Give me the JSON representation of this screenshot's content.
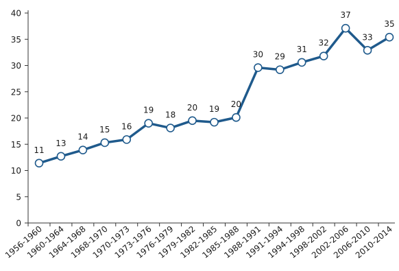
{
  "chart_data": {
    "type": "line",
    "title": "",
    "xlabel": "",
    "ylabel": "",
    "ylim": [
      0,
      40
    ],
    "yticks": [
      0,
      5,
      10,
      15,
      20,
      25,
      30,
      35,
      40
    ],
    "grid": false,
    "legend": "none",
    "line_color": "#1f5a8c",
    "marker_fill": "#ffffff",
    "categories": [
      "1956-1960",
      "1960-1964",
      "1964-1968",
      "1968-1970",
      "1970-1973",
      "1973-1976",
      "1976-1979",
      "1979-1982",
      "1982-1985",
      "1985-1988",
      "1988-1991",
      "1991-1994",
      "1994-1998",
      "1998-2002",
      "2002-2006",
      "2006-2010",
      "2010-2014"
    ],
    "series": [
      {
        "values": [
          11.4,
          12.7,
          13.9,
          15.3,
          15.9,
          19.0,
          18.1,
          19.5,
          19.2,
          20.1,
          29.6,
          29.2,
          30.6,
          31.8,
          37.1,
          32.9,
          35.4
        ],
        "labels": [
          "11",
          "13",
          "14",
          "15",
          "16",
          "19",
          "18",
          "20",
          "19",
          "20",
          "30",
          "29",
          "31",
          "32",
          "37",
          "33",
          "35"
        ]
      }
    ]
  }
}
